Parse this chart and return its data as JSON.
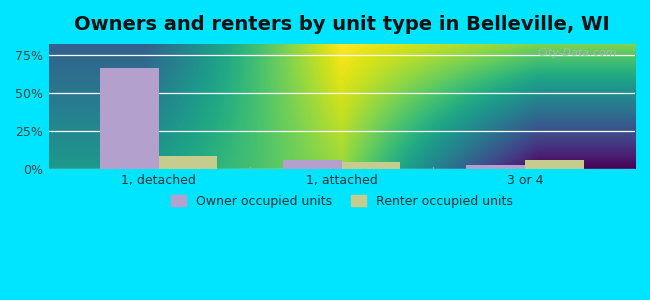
{
  "title": "Owners and renters by unit type in Belleville, WI",
  "categories": [
    "1, detached",
    "1, attached",
    "3 or 4"
  ],
  "owner_values": [
    0.665,
    0.055,
    0.025
  ],
  "renter_values": [
    0.085,
    0.048,
    0.055
  ],
  "owner_color": "#b3a0cc",
  "renter_color": "#c5cc8e",
  "yticks": [
    0.0,
    0.25,
    0.5,
    0.75
  ],
  "ytick_labels": [
    "0%",
    "25%",
    "50%",
    "75%"
  ],
  "ylim": [
    0,
    0.82
  ],
  "bar_width": 0.32,
  "bg_top": "#e8faf5",
  "bg_bottom": "#eef6e0",
  "legend_owner": "Owner occupied units",
  "legend_renter": "Renter occupied units",
  "watermark": "City-Data.com",
  "title_fontsize": 14,
  "outer_bg": "#00e5ff"
}
